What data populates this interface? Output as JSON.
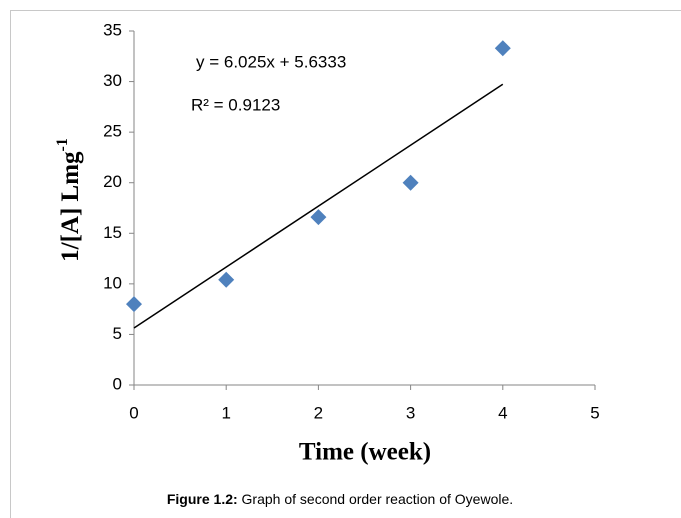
{
  "chart_data": {
    "type": "scatter",
    "xlabel": "Time (week)",
    "ylabel": "1/[A] Lmg",
    "ylabel_sup": "-1",
    "x": [
      0,
      1,
      2,
      3,
      4
    ],
    "values": [
      8,
      10.4,
      16.6,
      20,
      33.3
    ],
    "color": "#4f81bd",
    "trendline": {
      "x": [
        0,
        4
      ],
      "values": [
        5.6333,
        29.7333
      ],
      "color": "#000000"
    },
    "equation": "y = 6.025x + 5.6333",
    "r_squared": "R² = 0.9123",
    "xlim": [
      0,
      5
    ],
    "xticks": [
      0,
      1,
      2,
      3,
      4,
      5
    ],
    "ylim": [
      0,
      35
    ],
    "yticks": [
      0,
      5,
      10,
      15,
      20,
      25,
      30,
      35
    ],
    "grid": false,
    "caption_label": "Figure 1.2:",
    "caption": " Graph of second order reaction of Oyewole."
  }
}
